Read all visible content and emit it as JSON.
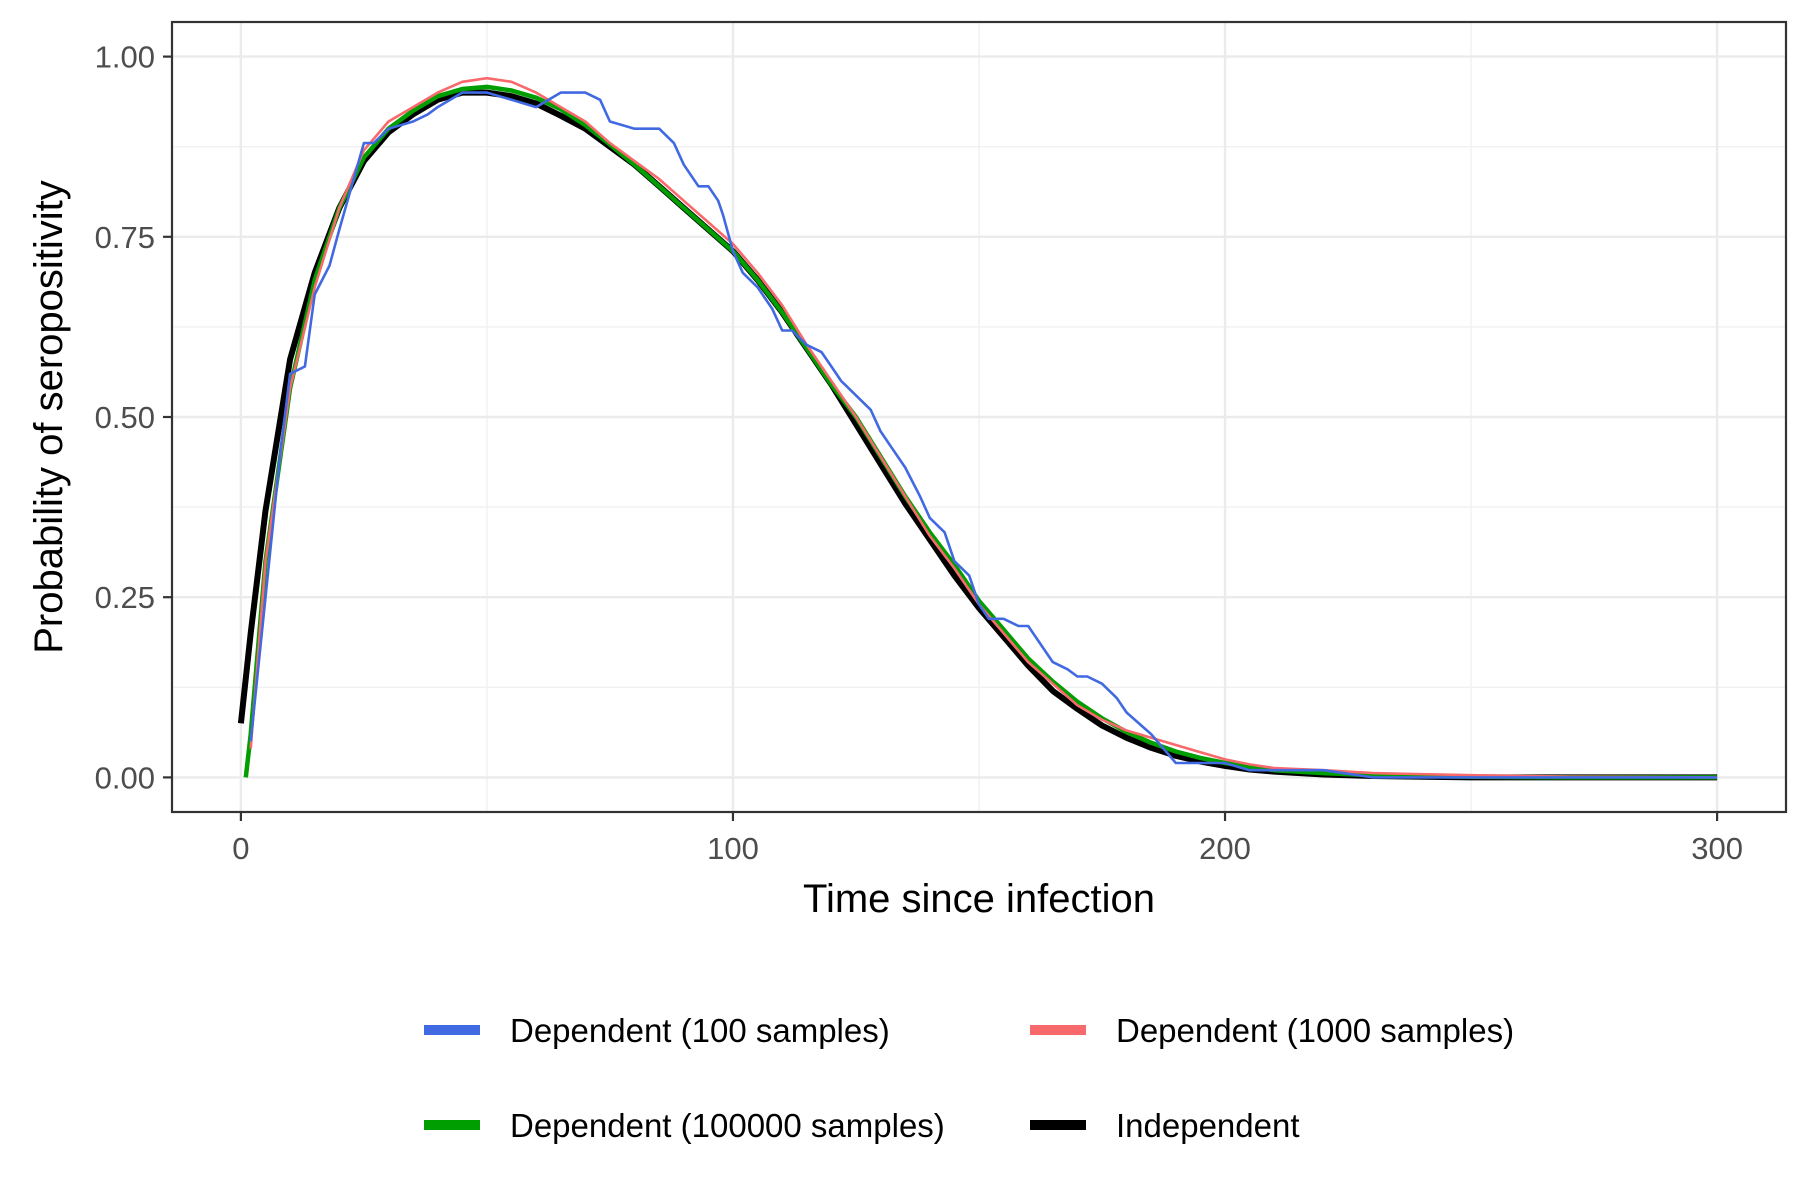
{
  "chart_data": {
    "type": "line",
    "title": "",
    "xlabel": "Time since infection",
    "ylabel": "Probability of seropositivity",
    "xlim": [
      -14,
      314
    ],
    "ylim": [
      -0.048,
      1.048
    ],
    "x_ticks": [
      0,
      100,
      200,
      300
    ],
    "x_tick_labels": [
      "0",
      "100",
      "200",
      "300"
    ],
    "y_ticks": [
      0,
      0.25,
      0.5,
      0.75,
      1.0
    ],
    "y_tick_labels": [
      "0.00",
      "0.25",
      "0.50",
      "0.75",
      "1.00"
    ],
    "grid": true,
    "legend_position": "bottom",
    "series": [
      {
        "name": "Dependent (100 samples)",
        "color": "#4169e1",
        "x": [
          2,
          5,
          8,
          10,
          13,
          15,
          18,
          20,
          25,
          27,
          30,
          35,
          38,
          40,
          45,
          48,
          50,
          55,
          60,
          65,
          70,
          73,
          75,
          80,
          85,
          88,
          90,
          93,
          95,
          97,
          98,
          100,
          102,
          105,
          108,
          110,
          112,
          115,
          118,
          120,
          122,
          125,
          128,
          130,
          132,
          135,
          138,
          140,
          143,
          145,
          148,
          150,
          152,
          155,
          158,
          160,
          162,
          165,
          168,
          170,
          172,
          175,
          178,
          180,
          185,
          190,
          192,
          195,
          200,
          205,
          210,
          220,
          230,
          250,
          270,
          300
        ],
        "y": [
          0.05,
          0.25,
          0.45,
          0.56,
          0.57,
          0.67,
          0.71,
          0.76,
          0.88,
          0.88,
          0.9,
          0.91,
          0.92,
          0.93,
          0.95,
          0.95,
          0.95,
          0.94,
          0.93,
          0.95,
          0.95,
          0.94,
          0.91,
          0.9,
          0.9,
          0.88,
          0.85,
          0.82,
          0.82,
          0.8,
          0.78,
          0.73,
          0.7,
          0.68,
          0.65,
          0.62,
          0.62,
          0.6,
          0.59,
          0.57,
          0.55,
          0.53,
          0.51,
          0.48,
          0.46,
          0.43,
          0.39,
          0.36,
          0.34,
          0.3,
          0.28,
          0.24,
          0.22,
          0.22,
          0.21,
          0.21,
          0.19,
          0.16,
          0.15,
          0.14,
          0.14,
          0.13,
          0.11,
          0.09,
          0.06,
          0.02,
          0.02,
          0.02,
          0.02,
          0.01,
          0.01,
          0.01,
          0.0,
          0.0,
          0.0,
          0.0
        ]
      },
      {
        "name": "Dependent (1000 samples)",
        "color": "#f8696b",
        "x": [
          2,
          5,
          10,
          15,
          20,
          25,
          30,
          35,
          40,
          45,
          50,
          55,
          60,
          65,
          70,
          75,
          80,
          85,
          90,
          95,
          100,
          105,
          110,
          115,
          120,
          125,
          130,
          135,
          140,
          145,
          150,
          155,
          160,
          165,
          170,
          175,
          180,
          185,
          190,
          195,
          200,
          205,
          210,
          220,
          230,
          250,
          270,
          300
        ],
        "y": [
          0.04,
          0.3,
          0.54,
          0.68,
          0.79,
          0.87,
          0.91,
          0.93,
          0.95,
          0.965,
          0.97,
          0.965,
          0.95,
          0.93,
          0.91,
          0.88,
          0.855,
          0.83,
          0.8,
          0.77,
          0.74,
          0.7,
          0.655,
          0.6,
          0.55,
          0.5,
          0.445,
          0.39,
          0.335,
          0.29,
          0.24,
          0.2,
          0.16,
          0.13,
          0.1,
          0.08,
          0.065,
          0.055,
          0.045,
          0.035,
          0.025,
          0.018,
          0.013,
          0.01,
          0.006,
          0.003,
          0.001,
          0.0
        ]
      },
      {
        "name": "Dependent (100000 samples)",
        "color": "#009e00",
        "x": [
          1,
          2,
          5,
          10,
          15,
          20,
          25,
          30,
          35,
          40,
          45,
          50,
          55,
          60,
          65,
          70,
          75,
          80,
          85,
          90,
          95,
          100,
          105,
          110,
          115,
          120,
          125,
          130,
          135,
          140,
          145,
          150,
          155,
          160,
          165,
          170,
          175,
          180,
          185,
          190,
          195,
          200,
          205,
          210,
          220,
          230,
          250,
          270,
          300
        ],
        "y": [
          0.0,
          0.06,
          0.3,
          0.54,
          0.69,
          0.79,
          0.86,
          0.9,
          0.925,
          0.945,
          0.955,
          0.958,
          0.953,
          0.943,
          0.927,
          0.905,
          0.878,
          0.85,
          0.82,
          0.79,
          0.76,
          0.73,
          0.69,
          0.645,
          0.595,
          0.545,
          0.5,
          0.445,
          0.39,
          0.34,
          0.295,
          0.245,
          0.205,
          0.165,
          0.133,
          0.105,
          0.082,
          0.063,
          0.048,
          0.036,
          0.027,
          0.02,
          0.015,
          0.01,
          0.006,
          0.003,
          0.001,
          0.0,
          0.0
        ]
      },
      {
        "name": "Independent",
        "color": "#000000",
        "x": [
          0,
          2,
          5,
          10,
          15,
          20,
          25,
          30,
          35,
          40,
          45,
          50,
          55,
          60,
          65,
          70,
          75,
          80,
          85,
          90,
          95,
          100,
          105,
          110,
          115,
          120,
          125,
          130,
          135,
          140,
          145,
          150,
          155,
          160,
          165,
          170,
          175,
          180,
          185,
          190,
          195,
          200,
          205,
          210,
          220,
          230,
          250,
          270,
          300
        ],
        "y": [
          0.075,
          0.2,
          0.37,
          0.58,
          0.7,
          0.79,
          0.855,
          0.895,
          0.92,
          0.94,
          0.95,
          0.95,
          0.945,
          0.935,
          0.918,
          0.9,
          0.875,
          0.85,
          0.82,
          0.79,
          0.76,
          0.73,
          0.69,
          0.645,
          0.595,
          0.545,
          0.49,
          0.435,
          0.38,
          0.33,
          0.28,
          0.235,
          0.195,
          0.155,
          0.12,
          0.095,
          0.072,
          0.055,
          0.041,
          0.03,
          0.022,
          0.016,
          0.011,
          0.008,
          0.004,
          0.002,
          0.0,
          0.0,
          0.0
        ]
      }
    ]
  }
}
